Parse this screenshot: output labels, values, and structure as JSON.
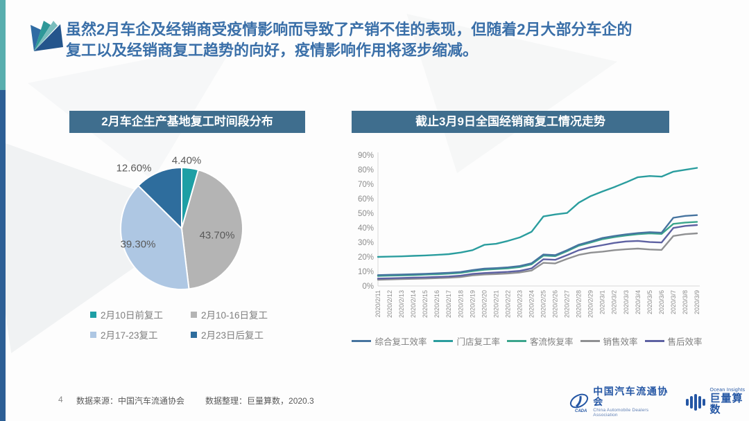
{
  "page": {
    "number": "4",
    "title_line1": "虽然2月车企及经销商受疫情影响而导致了产销不佳的表现，但随着2月大部分车企的",
    "title_line2": "复工以及经销商复工趋势的向好，疫情影响作用将逐步缩减。",
    "footer_source": "数据来源：中国汽车流通协会",
    "footer_prep": "数据整理：巨量算数，2020.3",
    "accent_teal": "#58aeae",
    "accent_blue": "#2d5f95",
    "title_color": "#3a6fa8",
    "panel_bar_color": "#3f6e8e"
  },
  "chart_data": [
    {
      "type": "pie",
      "title": "2月车企生产基地复工时间段分布",
      "labels": [
        "2月10日前复工",
        "2月10-16日复工",
        "2月17-23复工",
        "2月23日后复工"
      ],
      "values": [
        4.4,
        43.7,
        39.3,
        12.6
      ],
      "value_labels": [
        "4.40%",
        "43.70%",
        "39.30%",
        "12.60%"
      ],
      "colors": [
        "#1d9fa5",
        "#b4b4b4",
        "#aec7e3",
        "#2e6d9d"
      ],
      "legend_position": "bottom",
      "start_angle": "top",
      "direction": "clockwise"
    },
    {
      "type": "line",
      "title": "截止3月9日全国经销商复工情况走势",
      "x": [
        "2020/2/11",
        "2020/2/12",
        "2020/2/13",
        "2020/2/14",
        "2020/2/15",
        "2020/2/16",
        "2020/2/17",
        "2020/2/18",
        "2020/2/19",
        "2020/2/20",
        "2020/2/21",
        "2020/2/22",
        "2020/2/23",
        "2020/2/24",
        "2020/2/25",
        "2020/2/26",
        "2020/2/27",
        "2020/2/28",
        "2020/2/29",
        "2020/3/1",
        "2020/3/2",
        "2020/3/3",
        "2020/3/4",
        "2020/3/5",
        "2020/3/6",
        "2020/3/7",
        "2020/3/8",
        "2020/3/9"
      ],
      "ylim": [
        0,
        90
      ],
      "ytick_step": 10,
      "ytick_suffix": "%",
      "grid": false,
      "legend_position": "bottom",
      "series": [
        {
          "name": "综合复工效率",
          "color": "#46749f",
          "values": [
            7.5,
            7.7,
            7.9,
            8.1,
            8.4,
            8.7,
            9.1,
            9.6,
            10.9,
            11.9,
            12.3,
            12.8,
            13.7,
            15.6,
            21.6,
            21.2,
            24.6,
            28.4,
            30.6,
            33.0,
            34.4,
            35.5,
            36.4,
            37.0,
            36.6,
            46.9,
            48.2,
            48.7
          ]
        },
        {
          "name": "门店复工率",
          "color": "#2a9d9e",
          "values": [
            20.0,
            20.2,
            20.4,
            20.7,
            21.0,
            21.4,
            21.9,
            23.0,
            24.6,
            28.3,
            29.0,
            31.0,
            33.4,
            37.3,
            47.8,
            49.2,
            50.2,
            57.3,
            61.8,
            65.0,
            68.0,
            71.3,
            74.8,
            75.6,
            75.2,
            78.6,
            79.9,
            81.2
          ]
        },
        {
          "name": "客流恢复率",
          "color": "#3ba58c",
          "values": [
            6.9,
            7.1,
            7.3,
            7.5,
            7.8,
            8.1,
            8.5,
            9.0,
            10.2,
            11.2,
            11.6,
            12.1,
            13.0,
            14.9,
            20.9,
            20.5,
            23.9,
            27.7,
            29.9,
            32.2,
            33.6,
            34.7,
            35.6,
            36.2,
            35.8,
            42.7,
            43.6,
            44.1
          ]
        },
        {
          "name": "销售效率",
          "color": "#8f9092",
          "values": [
            4.3,
            4.5,
            4.7,
            4.9,
            5.1,
            5.4,
            5.7,
            6.2,
            7.3,
            7.9,
            8.2,
            8.6,
            9.3,
            10.6,
            15.9,
            15.5,
            18.6,
            21.4,
            22.9,
            23.6,
            24.6,
            25.3,
            25.7,
            25.1,
            24.8,
            34.4,
            35.6,
            36.2
          ]
        },
        {
          "name": "售后效率",
          "color": "#5d61a2",
          "values": [
            5.1,
            5.3,
            5.5,
            5.7,
            5.9,
            6.2,
            6.5,
            7.1,
            8.3,
            8.9,
            9.3,
            9.7,
            10.4,
            12.1,
            18.4,
            18.0,
            21.2,
            24.6,
            26.6,
            28.1,
            29.6,
            30.6,
            31.0,
            30.2,
            29.9,
            39.9,
            41.3,
            41.9
          ]
        }
      ]
    }
  ],
  "logos": {
    "cada_cn": "中国汽车流通协会",
    "cada_en": "China Automobile Dealers Association",
    "ocean_en": "Ocean Insights",
    "ocean_cn": "巨量算数",
    "logo_blue": "#2456a4"
  }
}
